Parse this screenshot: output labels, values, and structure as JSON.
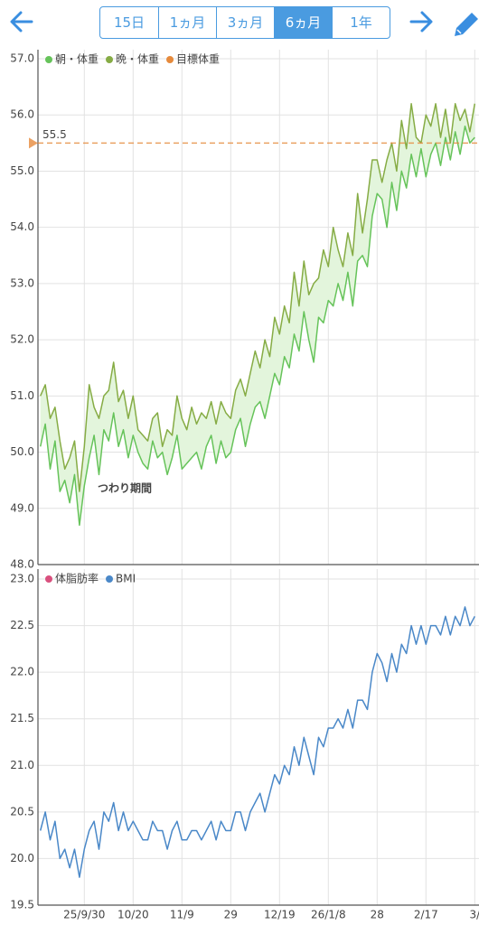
{
  "toolbar": {
    "tabs": [
      "15日",
      "1ヵ月",
      "3ヵ月",
      "6ヵ月",
      "1年"
    ],
    "selected": 3
  },
  "chart_data": [
    {
      "type": "line",
      "fill_between": true,
      "color_fill": "#e3f5dc",
      "ylim": [
        48,
        57
      ],
      "yticks": [
        {
          "value": 48,
          "label": "48.0"
        },
        {
          "value": 49,
          "label": "49.0"
        },
        {
          "value": 50,
          "label": "50.0"
        },
        {
          "value": 51,
          "label": "51.0"
        },
        {
          "value": 52,
          "label": "52.0"
        },
        {
          "value": 53,
          "label": "53.0"
        },
        {
          "value": 54,
          "label": "54.0"
        },
        {
          "value": 55,
          "label": "55.0"
        },
        {
          "value": 56,
          "label": "56.0"
        },
        {
          "value": 57,
          "label": "57.0"
        }
      ],
      "grid": true,
      "series": [
        {
          "name": "朝・体重",
          "color": "#66c35a",
          "values": [
            50.1,
            50.5,
            49.7,
            50.2,
            49.3,
            49.5,
            49.1,
            49.6,
            48.7,
            49.4,
            49.9,
            50.3,
            49.6,
            50.4,
            50.2,
            50.7,
            50.1,
            50.4,
            49.9,
            50.3,
            50.0,
            49.8,
            49.7,
            50.2,
            49.9,
            50.0,
            49.6,
            49.9,
            50.3,
            49.7,
            49.8,
            49.9,
            50.0,
            49.7,
            50.1,
            50.3,
            49.8,
            50.2,
            49.9,
            50.0,
            50.4,
            50.6,
            50.1,
            50.5,
            50.8,
            50.9,
            50.6,
            51.0,
            51.4,
            51.2,
            51.7,
            51.5,
            52.1,
            51.8,
            52.5,
            52.0,
            51.6,
            52.4,
            52.3,
            52.7,
            52.6,
            53.0,
            52.7,
            53.2,
            52.6,
            53.4,
            53.5,
            53.3,
            54.2,
            54.6,
            54.5,
            54.0,
            54.8,
            54.3,
            55.0,
            54.7,
            55.3,
            54.9,
            55.4,
            54.9,
            55.3,
            55.5,
            55.1,
            55.6,
            55.2,
            55.7,
            55.3,
            55.8,
            55.5,
            55.6
          ]
        },
        {
          "name": "晩・体重",
          "color": "#86ac45",
          "values": [
            51.0,
            51.2,
            50.6,
            50.8,
            50.2,
            49.7,
            49.9,
            50.2,
            49.3,
            50.1,
            51.2,
            50.8,
            50.6,
            51.0,
            51.1,
            51.6,
            50.9,
            51.1,
            50.6,
            51.0,
            50.4,
            50.3,
            50.2,
            50.6,
            50.7,
            50.1,
            50.4,
            50.3,
            51.0,
            50.6,
            50.4,
            50.8,
            50.5,
            50.7,
            50.6,
            50.9,
            50.5,
            50.9,
            50.7,
            50.6,
            51.1,
            51.3,
            51.0,
            51.4,
            51.8,
            51.5,
            52.0,
            51.7,
            52.4,
            52.1,
            52.6,
            52.3,
            53.2,
            52.6,
            53.4,
            52.8,
            53.0,
            53.1,
            53.6,
            53.3,
            54.0,
            53.6,
            53.3,
            53.9,
            53.5,
            54.6,
            53.9,
            54.5,
            55.2,
            55.2,
            54.8,
            55.2,
            55.5,
            55.0,
            55.9,
            55.4,
            56.2,
            55.6,
            55.5,
            56.0,
            55.8,
            56.2,
            55.6,
            56.1,
            55.5,
            56.2,
            55.9,
            56.1,
            55.7,
            56.2
          ]
        }
      ],
      "target": {
        "name": "目標体重",
        "color": "#e68a3c",
        "value": 55.5
      },
      "annotation": "つわり期間"
    },
    {
      "type": "line",
      "categories": [
        null,
        null,
        null,
        null,
        null,
        null,
        null,
        null,
        null,
        "25/9/30",
        null,
        null,
        null,
        null,
        null,
        null,
        null,
        null,
        null,
        "10/20",
        null,
        null,
        null,
        null,
        null,
        null,
        null,
        null,
        null,
        "11/9",
        null,
        null,
        null,
        null,
        null,
        null,
        null,
        null,
        null,
        "29",
        null,
        null,
        null,
        null,
        null,
        null,
        null,
        null,
        null,
        "12/19",
        null,
        null,
        null,
        null,
        null,
        null,
        null,
        null,
        null,
        "26/1/8",
        null,
        null,
        null,
        null,
        null,
        null,
        null,
        null,
        null,
        "28",
        null,
        null,
        null,
        null,
        null,
        null,
        null,
        null,
        null,
        "2/17",
        null,
        null,
        null,
        null,
        null,
        null,
        null,
        null,
        null,
        "3/"
      ],
      "ylim": [
        19.5,
        23
      ],
      "yticks": [
        19.5,
        {
          "value": 20,
          "label": "20.0"
        },
        20.5,
        {
          "value": 21,
          "label": "21.0"
        },
        21.5,
        {
          "value": 22,
          "label": "22.0"
        },
        22.5,
        {
          "value": 23,
          "label": "23.0"
        }
      ],
      "grid": true,
      "series": [
        {
          "name": "体脂肪率",
          "color": "#d9507e",
          "values": [
            null,
            null,
            null,
            null,
            null,
            null,
            null,
            null,
            null,
            null,
            null,
            null,
            null,
            null,
            null,
            null,
            null,
            null,
            null,
            null,
            null,
            null,
            null,
            null,
            null,
            null,
            null,
            null,
            null,
            null,
            null,
            null,
            null,
            null,
            null,
            null,
            null,
            null,
            null,
            null,
            null,
            null,
            null,
            null,
            null,
            null,
            null,
            null,
            null,
            null,
            null,
            null,
            null,
            null,
            null,
            null,
            null,
            null,
            null,
            null,
            null,
            null,
            null,
            null,
            null,
            null,
            null,
            null,
            null,
            null,
            null,
            null,
            null,
            null,
            null,
            null,
            null,
            null,
            null,
            null,
            null,
            null,
            null,
            null,
            null,
            null,
            null,
            null,
            null,
            null
          ]
        },
        {
          "name": "BMI",
          "color": "#4a88c8",
          "values": [
            20.3,
            20.5,
            20.2,
            20.4,
            20.0,
            20.1,
            19.9,
            20.1,
            19.8,
            20.1,
            20.3,
            20.4,
            20.1,
            20.5,
            20.4,
            20.6,
            20.3,
            20.5,
            20.3,
            20.4,
            20.3,
            20.2,
            20.2,
            20.4,
            20.3,
            20.3,
            20.1,
            20.3,
            20.4,
            20.2,
            20.2,
            20.3,
            20.3,
            20.2,
            20.3,
            20.4,
            20.2,
            20.4,
            20.3,
            20.3,
            20.5,
            20.5,
            20.3,
            20.5,
            20.6,
            20.7,
            20.5,
            20.7,
            20.9,
            20.8,
            21.0,
            20.9,
            21.2,
            21.0,
            21.3,
            21.1,
            20.9,
            21.3,
            21.2,
            21.4,
            21.4,
            21.5,
            21.4,
            21.6,
            21.4,
            21.7,
            21.7,
            21.6,
            22.0,
            22.2,
            22.1,
            21.9,
            22.2,
            22.0,
            22.3,
            22.2,
            22.5,
            22.3,
            22.5,
            22.3,
            22.5,
            22.5,
            22.4,
            22.6,
            22.4,
            22.6,
            22.5,
            22.7,
            22.5,
            22.6
          ]
        }
      ]
    }
  ]
}
